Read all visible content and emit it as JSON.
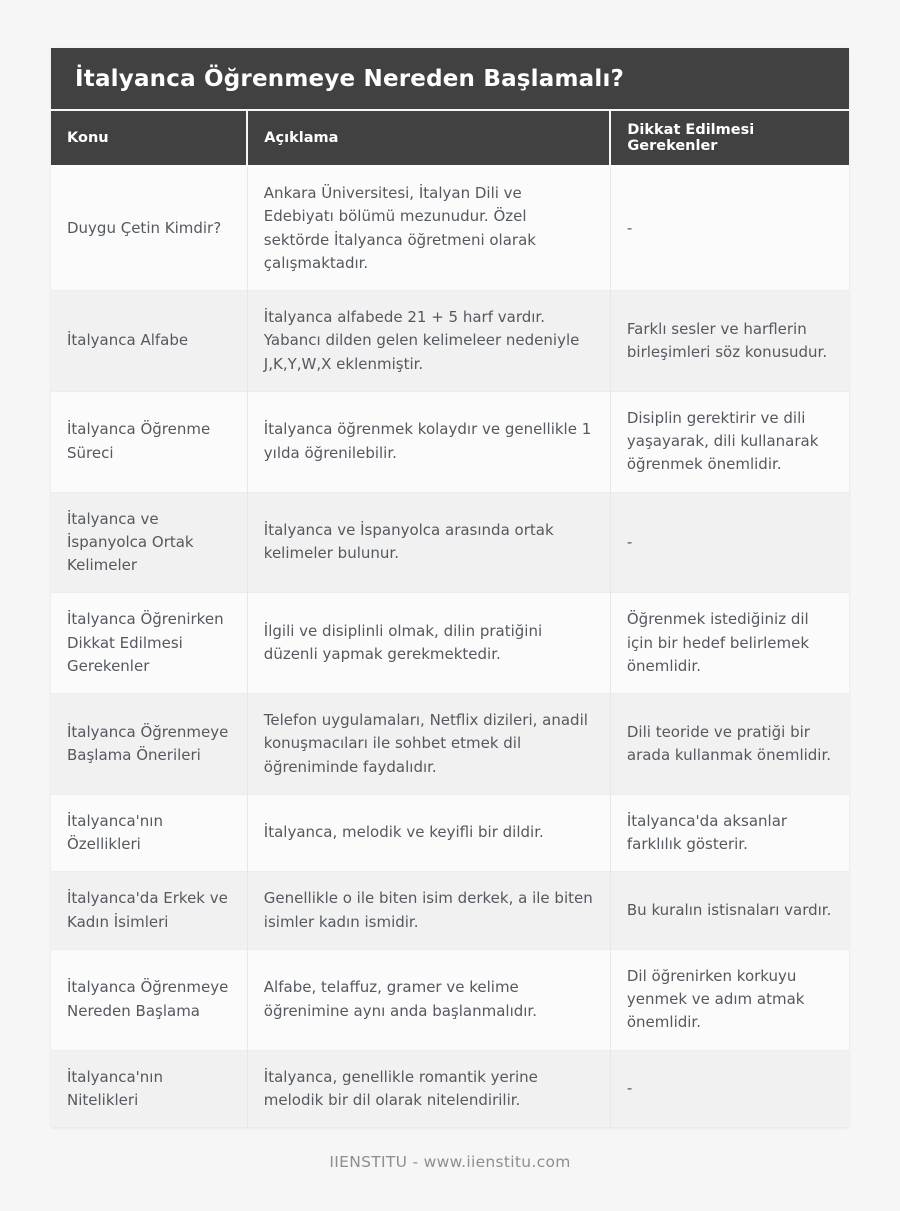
{
  "page": {
    "title": "İtalyanca Öğrenmeye Nereden Başlamalı?",
    "footer_credit": "IIENSTITU - www.iienstitu.com"
  },
  "colors": {
    "header_bg": "#414141",
    "header_text": "#ffffff",
    "body_text": "#54595f",
    "row_odd_bg": "#fbfbfb",
    "row_even_bg": "#f1f1f1",
    "page_bg": "#f6f6f6",
    "footer_text": "#8e8e8e"
  },
  "table": {
    "columns": [
      "Konu",
      "Açıklama",
      "Dikkat Edilmesi Gerekenler"
    ],
    "rows": [
      {
        "konu": "Duygu Çetin Kimdir?",
        "aciklama": "Ankara Üniversitesi, İtalyan Dili ve Edebiyatı bölümü mezunudur. Özel sektörde İtalyanca öğretmeni olarak çalışmaktadır.",
        "dikkat": "-"
      },
      {
        "konu": "İtalyanca Alfabe",
        "aciklama": "İtalyanca alfabede 21 + 5 harf vardır. Yabancı dilden gelen kelimeleer nedeniyle J,K,Y,W,X eklenmiştir.",
        "dikkat": "Farklı sesler ve harflerin birleşimleri söz konusudur."
      },
      {
        "konu": "İtalyanca Öğrenme Süreci",
        "aciklama": "İtalyanca öğrenmek kolaydır ve genellikle 1 yılda öğrenilebilir.",
        "dikkat": "Disiplin gerektirir ve dili yaşayarak, dili kullanarak öğrenmek önemlidir."
      },
      {
        "konu": "İtalyanca ve İspanyolca Ortak Kelimeler",
        "aciklama": "İtalyanca ve İspanyolca arasında ortak kelimeler bulunur.",
        "dikkat": "-"
      },
      {
        "konu": "İtalyanca Öğrenirken Dikkat Edilmesi Gerekenler",
        "aciklama": "İlgili ve disiplinli olmak, dilin pratiğini düzenli yapmak gerekmektedir.",
        "dikkat": "Öğrenmek istediğiniz dil için bir hedef belirlemek önemlidir."
      },
      {
        "konu": "İtalyanca Öğrenmeye Başlama Önerileri",
        "aciklama": "Telefon uygulamaları, Netflix dizileri, anadil konuşmacıları ile sohbet etmek dil öğreniminde faydalıdır.",
        "dikkat": "Dili teoride ve pratiği bir arada kullanmak önemlidir."
      },
      {
        "konu": "İtalyanca'nın Özellikleri",
        "aciklama": "İtalyanca, melodik ve keyifli bir dildir.",
        "dikkat": "İtalyanca'da aksanlar farklılık gösterir."
      },
      {
        "konu": "İtalyanca'da Erkek ve Kadın İsimleri",
        "aciklama": "Genellikle o ile biten isim derkek, a ile biten isimler kadın ismidir.",
        "dikkat": "Bu kuralın istisnaları vardır."
      },
      {
        "konu": "İtalyanca Öğrenmeye Nereden Başlama",
        "aciklama": "Alfabe, telaffuz, gramer ve kelime öğrenimine aynı anda başlanmalıdır.",
        "dikkat": "Dil öğrenirken korkuyu yenmek ve adım atmak önemlidir."
      },
      {
        "konu": "İtalyanca'nın Nitelikleri",
        "aciklama": "İtalyanca, genellikle romantik yerine melodik bir dil olarak nitelendirilir.",
        "dikkat": "-"
      }
    ]
  }
}
